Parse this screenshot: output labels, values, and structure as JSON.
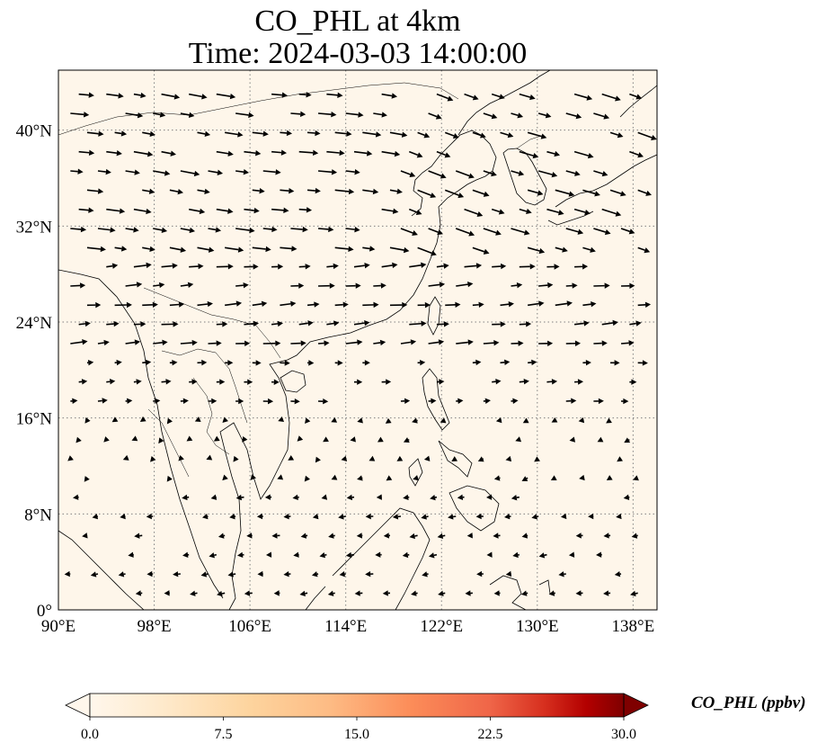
{
  "figure": {
    "title_line1": "CO_PHL at 4km",
    "title_line2": "Time: 2024-03-03 14:00:00"
  },
  "map": {
    "lon_range": [
      90,
      140
    ],
    "lat_range": [
      0,
      45
    ],
    "gridlines": true,
    "background_color": "#fef6ea",
    "lon_ticks": [
      {
        "value": 90,
        "label": "90°E"
      },
      {
        "value": 98,
        "label": "98°E"
      },
      {
        "value": 106,
        "label": "106°E"
      },
      {
        "value": 114,
        "label": "114°E"
      },
      {
        "value": 122,
        "label": "122°E"
      },
      {
        "value": 130,
        "label": "130°E"
      },
      {
        "value": 138,
        "label": "138°E"
      }
    ],
    "lat_ticks": [
      {
        "value": 0,
        "label": "0°"
      },
      {
        "value": 8,
        "label": "8°N"
      },
      {
        "value": 16,
        "label": "16°N"
      },
      {
        "value": 24,
        "label": "24°N"
      },
      {
        "value": 32,
        "label": "32°N"
      },
      {
        "value": 40,
        "label": "40°N"
      }
    ]
  },
  "colorbar": {
    "label": "CO_PHL (ppbv)",
    "range": [
      0,
      30
    ],
    "extend": "both",
    "colormap": "OrRd",
    "ticks": [
      "0.0",
      "7.5",
      "15.0",
      "22.5",
      "30.0"
    ],
    "tick_values": [
      0,
      7.5,
      15,
      22.5,
      30
    ]
  }
}
